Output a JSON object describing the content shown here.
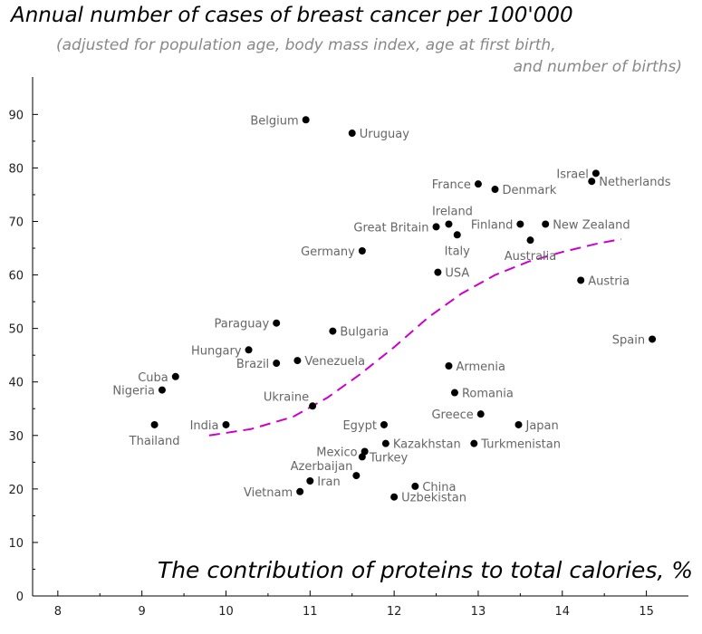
{
  "chart_data": {
    "type": "scatter",
    "title": "Annual number of cases of breast cancer per 100'000",
    "subtitle_line1": "(adjusted for population age, body mass index, age at first birth,",
    "subtitle_line2": "and number of births)",
    "xlabel": "The contribution of proteins to total calories, %",
    "ylabel": "",
    "xlim": [
      7.7,
      15.5
    ],
    "ylim": [
      0,
      97
    ],
    "x_ticks": [
      8,
      9,
      10,
      11,
      12,
      13,
      14,
      15
    ],
    "y_ticks": [
      0,
      10,
      20,
      30,
      40,
      50,
      60,
      70,
      80,
      90
    ],
    "grid": false,
    "point_color": "#000000",
    "label_color": "#666666",
    "trend_color": "#cc00cc",
    "points": [
      {
        "label": "Belgium",
        "x": 10.95,
        "y": 89,
        "side": "left"
      },
      {
        "label": "Uruguay",
        "x": 11.5,
        "y": 86.5,
        "side": "right"
      },
      {
        "label": "Israel",
        "x": 14.4,
        "y": 79,
        "side": "left"
      },
      {
        "label": "Netherlands",
        "x": 14.35,
        "y": 77.5,
        "side": "right"
      },
      {
        "label": "France",
        "x": 13.0,
        "y": 77,
        "side": "left"
      },
      {
        "label": "Denmark",
        "x": 13.2,
        "y": 76,
        "side": "right"
      },
      {
        "label": "Ireland",
        "x": 12.65,
        "y": 69.5,
        "side": "above"
      },
      {
        "label": "Great Britain",
        "x": 12.5,
        "y": 69,
        "side": "left"
      },
      {
        "label": "Italy",
        "x": 12.75,
        "y": 67.5,
        "side": "below"
      },
      {
        "label": "Finland",
        "x": 13.5,
        "y": 69.5,
        "side": "left"
      },
      {
        "label": "New Zealand",
        "x": 13.8,
        "y": 69.5,
        "side": "right"
      },
      {
        "label": "Australia",
        "x": 13.62,
        "y": 66.5,
        "side": "below"
      },
      {
        "label": "Germany",
        "x": 11.62,
        "y": 64.5,
        "side": "left"
      },
      {
        "label": "USA",
        "x": 12.52,
        "y": 60.5,
        "side": "right"
      },
      {
        "label": "Austria",
        "x": 14.22,
        "y": 59,
        "side": "right"
      },
      {
        "label": "Paraguay",
        "x": 10.6,
        "y": 51,
        "side": "left"
      },
      {
        "label": "Bulgaria",
        "x": 11.27,
        "y": 49.5,
        "side": "right"
      },
      {
        "label": "Spain",
        "x": 15.07,
        "y": 48,
        "side": "left"
      },
      {
        "label": "Hungary",
        "x": 10.27,
        "y": 46,
        "side": "left"
      },
      {
        "label": "Brazil",
        "x": 10.6,
        "y": 43.5,
        "side": "left"
      },
      {
        "label": "Venezuela",
        "x": 10.85,
        "y": 44,
        "side": "right"
      },
      {
        "label": "Armenia",
        "x": 12.65,
        "y": 43,
        "side": "right"
      },
      {
        "label": "Cuba",
        "x": 9.4,
        "y": 41,
        "side": "left"
      },
      {
        "label": "Nigeria",
        "x": 9.24,
        "y": 38.5,
        "side": "left"
      },
      {
        "label": "Romania",
        "x": 12.72,
        "y": 38,
        "side": "right"
      },
      {
        "label": "Ukraine",
        "x": 11.03,
        "y": 35.5,
        "side": "above-left"
      },
      {
        "label": "Greece",
        "x": 13.03,
        "y": 34,
        "side": "left"
      },
      {
        "label": "Thailand",
        "x": 9.15,
        "y": 32,
        "side": "below"
      },
      {
        "label": "India",
        "x": 10.0,
        "y": 32,
        "side": "left"
      },
      {
        "label": "Egypt",
        "x": 11.88,
        "y": 32,
        "side": "left"
      },
      {
        "label": "Japan",
        "x": 13.48,
        "y": 32,
        "side": "right"
      },
      {
        "label": "Kazakhstan",
        "x": 11.9,
        "y": 28.5,
        "side": "right"
      },
      {
        "label": "Turkmenistan",
        "x": 12.95,
        "y": 28.5,
        "side": "right"
      },
      {
        "label": "Mexico",
        "x": 11.65,
        "y": 27,
        "side": "left"
      },
      {
        "label": "Turkey",
        "x": 11.62,
        "y": 26,
        "side": "right"
      },
      {
        "label": "Azerbaijan",
        "x": 11.55,
        "y": 22.5,
        "side": "above-left"
      },
      {
        "label": "Iran",
        "x": 11.0,
        "y": 21.5,
        "side": "right"
      },
      {
        "label": "China",
        "x": 12.25,
        "y": 20.5,
        "side": "right"
      },
      {
        "label": "Vietnam",
        "x": 10.88,
        "y": 19.5,
        "side": "left"
      },
      {
        "label": "Uzbekistan",
        "x": 12.0,
        "y": 18.5,
        "side": "right"
      }
    ],
    "trend_line": [
      [
        9.8,
        30
      ],
      [
        10.3,
        31.2
      ],
      [
        10.8,
        33.5
      ],
      [
        11.2,
        37
      ],
      [
        11.6,
        41.5
      ],
      [
        12.0,
        46.5
      ],
      [
        12.4,
        52
      ],
      [
        12.8,
        56.5
      ],
      [
        13.2,
        60
      ],
      [
        13.6,
        62.5
      ],
      [
        14.0,
        64.3
      ],
      [
        14.4,
        65.8
      ],
      [
        14.7,
        66.7
      ]
    ]
  }
}
